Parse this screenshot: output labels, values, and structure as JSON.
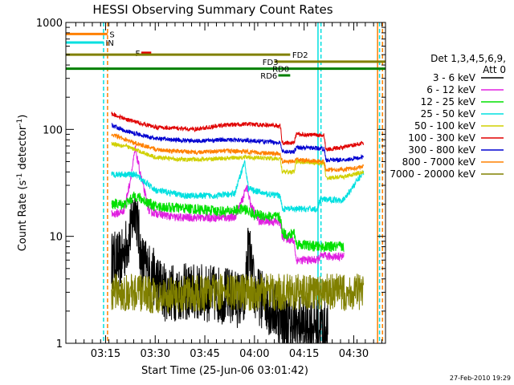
{
  "chart_data": {
    "type": "line",
    "title": "HESSI Observing Summary Count Rates",
    "xlabel": "Start Time (25-Jun-06 03:01:42)",
    "ylabel_parts": [
      "Count Rate (s",
      "-1",
      " detector",
      "-1",
      ")"
    ],
    "y_scale": "log",
    "ylim": [
      1,
      1000
    ],
    "yticks": [
      1,
      10,
      100,
      1000
    ],
    "ytick_labels": [
      "1",
      "10",
      "100",
      "1000"
    ],
    "xlim_minutes": [
      3.05,
      4.66
    ],
    "xticks": [
      {
        "label": "03:15",
        "t": 3.25
      },
      {
        "label": "03:30",
        "t": 3.5
      },
      {
        "label": "03:45",
        "t": 3.75
      },
      {
        "label": "04:00",
        "t": 4.0
      },
      {
        "label": "04:15",
        "t": 4.25
      },
      {
        "label": "04:30",
        "t": 4.5
      }
    ],
    "legend": {
      "placement": "right",
      "header": [
        "Det 1,3,4,5,6,9,",
        "Att 0"
      ],
      "entries": [
        {
          "label": "3 - 6 keV",
          "color": "#000000"
        },
        {
          "label": "6 - 12 keV",
          "color": "#e020e0"
        },
        {
          "label": "12 - 25 keV",
          "color": "#00e000"
        },
        {
          "label": "25 - 50 keV",
          "color": "#00e0e0"
        },
        {
          "label": "50 - 100 keV",
          "color": "#d0d000"
        },
        {
          "label": "100 - 300 keV",
          "color": "#e00000"
        },
        {
          "label": "300 - 800 keV",
          "color": "#0000d0"
        },
        {
          "label": "800 - 7000 keV",
          "color": "#ff8000"
        },
        {
          "label": "7000 - 20000 keV",
          "color": "#808000"
        }
      ]
    },
    "flags": [
      {
        "label": "S",
        "color": "#ff8000",
        "y": 780,
        "t_start": 3.05,
        "t_end": 3.26,
        "label_t": 3.27
      },
      {
        "label": "IN",
        "color": "#00e0e0",
        "y": 650,
        "t_start": 3.05,
        "t_end": 3.24,
        "label_t": 3.25
      },
      {
        "label": "F",
        "color": "#e00000",
        "y": 520,
        "t_start": 3.43,
        "t_end": 3.48,
        "label_t": 3.4
      },
      {
        "label": "FD2",
        "color": "#808000",
        "y": 500,
        "t_start": 3.05,
        "t_end": 4.18,
        "label_t": 4.19
      },
      {
        "label": "FD3",
        "color": "#808000",
        "y": 430,
        "t_start": 4.1,
        "t_end": 4.66,
        "label_t": 4.04
      },
      {
        "label": "RD0",
        "color": "#008000",
        "y": 370,
        "t_start": 3.05,
        "t_end": 4.66,
        "label_t": 4.09
      },
      {
        "label": "RD6",
        "color": "#008000",
        "y": 320,
        "t_start": 4.12,
        "t_end": 4.18,
        "label_t": 4.03
      }
    ],
    "vertical_lines": [
      {
        "t": 3.24,
        "color": "#00e0e0",
        "style": "dashed"
      },
      {
        "t": 3.26,
        "color": "#ff8000",
        "style": "dashed"
      },
      {
        "t": 4.335,
        "color": "#00e0e0",
        "style": "dashed"
      },
      {
        "t": 4.32,
        "color": "#00e0e0",
        "style": "solid"
      },
      {
        "t": 4.63,
        "color": "#00e0e0",
        "style": "dashed"
      },
      {
        "t": 4.62,
        "color": "#ff8000",
        "style": "solid"
      },
      {
        "t": 4.645,
        "color": "#ff8000",
        "style": "dashed"
      }
    ],
    "series": [
      {
        "name": "3 - 6 keV",
        "color": "#000000",
        "noise": 0.55,
        "points": [
          [
            3.28,
            6
          ],
          [
            3.33,
            6
          ],
          [
            3.37,
            10
          ],
          [
            3.4,
            20
          ],
          [
            3.43,
            6
          ],
          [
            3.46,
            5
          ],
          [
            3.55,
            3
          ],
          [
            3.7,
            3
          ],
          [
            3.85,
            2.8
          ],
          [
            3.95,
            2.5
          ],
          [
            3.97,
            8
          ],
          [
            4.0,
            3
          ],
          [
            4.1,
            2
          ],
          [
            4.17,
            1.5
          ],
          [
            4.25,
            1.5
          ],
          [
            4.3,
            1.5
          ],
          [
            4.37,
            1.3
          ]
        ]
      },
      {
        "name": "6 - 12 keV",
        "color": "#e020e0",
        "noise": 0.08,
        "points": [
          [
            3.28,
            16
          ],
          [
            3.34,
            17
          ],
          [
            3.37,
            30
          ],
          [
            3.4,
            65
          ],
          [
            3.43,
            35
          ],
          [
            3.47,
            17
          ],
          [
            3.6,
            15
          ],
          [
            3.8,
            15
          ],
          [
            3.9,
            15
          ],
          [
            3.94,
            22
          ],
          [
            3.96,
            30
          ],
          [
            3.98,
            20
          ],
          [
            4.02,
            14
          ],
          [
            4.13,
            13.5
          ],
          [
            4.14,
            10
          ],
          [
            4.2,
            9
          ],
          [
            4.21,
            6
          ],
          [
            4.32,
            6
          ],
          [
            4.33,
            6.5
          ],
          [
            4.45,
            6.5
          ]
        ]
      },
      {
        "name": "12 - 25 keV",
        "color": "#00e000",
        "noise": 0.1,
        "points": [
          [
            3.28,
            20
          ],
          [
            3.35,
            20
          ],
          [
            3.4,
            24
          ],
          [
            3.5,
            19
          ],
          [
            3.7,
            18
          ],
          [
            3.85,
            17
          ],
          [
            3.95,
            18
          ],
          [
            4.0,
            16
          ],
          [
            4.13,
            15
          ],
          [
            4.14,
            11
          ],
          [
            4.17,
            10
          ],
          [
            4.2,
            11
          ],
          [
            4.21,
            8.5
          ],
          [
            4.32,
            8
          ],
          [
            4.38,
            8
          ],
          [
            4.45,
            8
          ]
        ]
      },
      {
        "name": "25 - 50 keV",
        "color": "#00e0e0",
        "noise": 0.06,
        "points": [
          [
            3.28,
            38
          ],
          [
            3.4,
            38
          ],
          [
            3.5,
            27
          ],
          [
            3.65,
            24
          ],
          [
            3.8,
            24
          ],
          [
            3.9,
            25
          ],
          [
            3.95,
            50
          ],
          [
            3.97,
            28
          ],
          [
            4.05,
            25
          ],
          [
            4.13,
            24
          ],
          [
            4.14,
            18
          ],
          [
            4.2,
            18
          ],
          [
            4.21,
            18
          ],
          [
            4.32,
            18
          ],
          [
            4.33,
            22
          ],
          [
            4.45,
            22
          ],
          [
            4.5,
            30
          ],
          [
            4.55,
            40
          ]
        ]
      },
      {
        "name": "50 - 100 keV",
        "color": "#d0d000",
        "noise": 0.04,
        "points": [
          [
            3.28,
            74
          ],
          [
            3.35,
            70
          ],
          [
            3.5,
            55
          ],
          [
            3.65,
            52
          ],
          [
            3.8,
            53
          ],
          [
            3.95,
            55
          ],
          [
            4.05,
            54
          ],
          [
            4.13,
            53
          ],
          [
            4.14,
            40
          ],
          [
            4.2,
            40
          ],
          [
            4.21,
            50
          ],
          [
            4.35,
            48
          ],
          [
            4.36,
            35
          ],
          [
            4.45,
            36
          ],
          [
            4.55,
            40
          ]
        ]
      },
      {
        "name": "100 - 300 keV",
        "color": "#e00000",
        "noise": 0.04,
        "points": [
          [
            3.28,
            140
          ],
          [
            3.35,
            125
          ],
          [
            3.5,
            105
          ],
          [
            3.7,
            100
          ],
          [
            3.85,
            110
          ],
          [
            3.95,
            112
          ],
          [
            4.05,
            110
          ],
          [
            4.13,
            108
          ],
          [
            4.14,
            75
          ],
          [
            4.2,
            75
          ],
          [
            4.21,
            90
          ],
          [
            4.35,
            88
          ],
          [
            4.36,
            65
          ],
          [
            4.45,
            68
          ],
          [
            4.55,
            75
          ]
        ]
      },
      {
        "name": "300 - 800 keV",
        "color": "#0000d0",
        "noise": 0.04,
        "points": [
          [
            3.28,
            110
          ],
          [
            3.35,
            97
          ],
          [
            3.5,
            82
          ],
          [
            3.7,
            78
          ],
          [
            3.85,
            80
          ],
          [
            3.95,
            79
          ],
          [
            4.05,
            77
          ],
          [
            4.13,
            75
          ],
          [
            4.14,
            62
          ],
          [
            4.2,
            62
          ],
          [
            4.21,
            68
          ],
          [
            4.35,
            66
          ],
          [
            4.36,
            52
          ],
          [
            4.45,
            52
          ],
          [
            4.55,
            55
          ]
        ]
      },
      {
        "name": "800 - 7000 keV",
        "color": "#ff8000",
        "noise": 0.04,
        "points": [
          [
            3.28,
            90
          ],
          [
            3.35,
            80
          ],
          [
            3.5,
            65
          ],
          [
            3.7,
            61
          ],
          [
            3.85,
            63
          ],
          [
            3.95,
            62
          ],
          [
            4.05,
            60
          ],
          [
            4.13,
            59
          ],
          [
            4.14,
            50
          ],
          [
            4.2,
            50
          ],
          [
            4.21,
            52
          ],
          [
            4.35,
            50
          ],
          [
            4.36,
            42
          ],
          [
            4.45,
            42
          ],
          [
            4.55,
            45
          ]
        ]
      },
      {
        "name": "7000 - 20000 keV",
        "color": "#808000",
        "noise": 0.35,
        "points": [
          [
            3.28,
            3
          ],
          [
            3.4,
            3
          ],
          [
            3.5,
            2.8
          ],
          [
            3.7,
            2.9
          ],
          [
            3.85,
            3
          ],
          [
            4.0,
            3
          ],
          [
            4.15,
            3
          ],
          [
            4.3,
            3
          ],
          [
            4.45,
            3
          ],
          [
            4.55,
            3
          ]
        ]
      }
    ]
  },
  "footer": {
    "timestamp": "27-Feb-2010 19:29"
  }
}
